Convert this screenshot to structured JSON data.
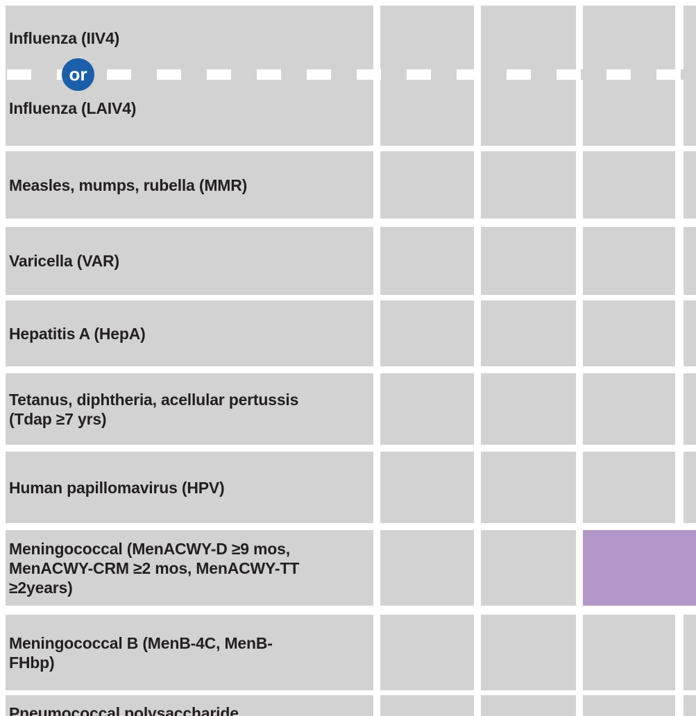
{
  "colors": {
    "page_bg": "#ffffff",
    "cell_gray": "#d2d2d2",
    "label_text": "#231f20",
    "purple": "#b497c8",
    "or_blue": "#1b5faa",
    "dash_white": "#ffffff"
  },
  "divider": {
    "or_label": "or"
  },
  "rows": [
    {
      "label": "Influenza (IIV4)",
      "cells": [
        "gray",
        "gray",
        "gray",
        "gray"
      ]
    },
    {
      "label": "Influenza (LAIV4)"
    },
    {
      "label": "Measles, mumps, rubella (MMR)",
      "cells": [
        "gray",
        "gray",
        "gray",
        "gray"
      ]
    },
    {
      "label": "Varicella (VAR)",
      "cells": [
        "gray",
        "gray",
        "gray",
        "gray"
      ]
    },
    {
      "label": "Hepatitis A (HepA)",
      "cells": [
        "gray",
        "gray",
        "gray",
        "gray"
      ]
    },
    {
      "label": "Tetanus, diphtheria, acellular pertussis\n(Tdap ≥7 yrs)",
      "cells": [
        "gray",
        "gray",
        "gray",
        "gray"
      ]
    },
    {
      "label": "Human papillomavirus (HPV)",
      "cells": [
        "gray",
        "gray",
        "gray",
        "gray"
      ]
    },
    {
      "label": "Meningococcal (MenACWY-D ≥9 mos,\nMenACWY-CRM ≥2 mos,  MenACWY-TT\n≥2years)",
      "cells": [
        "gray",
        "gray",
        "purple"
      ]
    },
    {
      "label": "Meningococcal B (MenB-4C, MenB-\nFHbp)",
      "cells": [
        "gray",
        "gray",
        "gray",
        "gray"
      ]
    },
    {
      "label": "Pneumococcal polysaccharide",
      "cells": [
        "gray",
        "gray",
        "gray",
        "gray"
      ]
    }
  ]
}
